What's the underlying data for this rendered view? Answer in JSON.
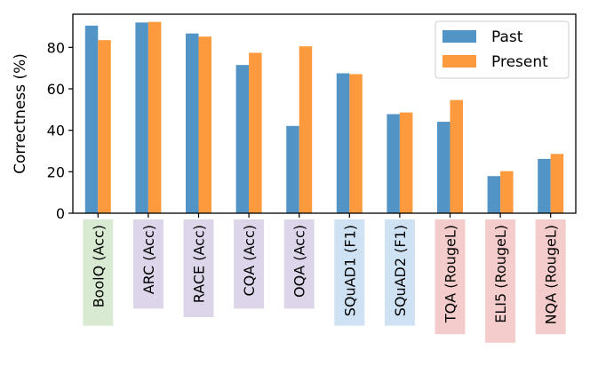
{
  "chart_data": {
    "type": "bar",
    "title": "",
    "xlabel": "",
    "ylabel": "Correctness (%)",
    "ylim": [
      0,
      96
    ],
    "yticks": [
      0,
      20,
      40,
      60,
      80
    ],
    "grid": false,
    "legend_position": "top-right",
    "categories": [
      "BoolQ (Acc)",
      "ARC (Acc)",
      "RACE (Acc)",
      "CQA (Acc)",
      "OQA (Acc)",
      "SQuAD1 (F1)",
      "SQuAD2 (F1)",
      "TQA (RougeL)",
      "ELI5 (RougeL)",
      "NQA (RougeL)"
    ],
    "category_highlight_colors": [
      "#d9ead3",
      "#ddd5ea",
      "#ddd5ea",
      "#ddd5ea",
      "#ddd5ea",
      "#cfe2f3",
      "#cfe2f3",
      "#f4cccc",
      "#f4cccc",
      "#f4cccc"
    ],
    "series": [
      {
        "name": "Past",
        "color": "#5294c5",
        "values": [
          90.5,
          92,
          86.7,
          71.5,
          42.1,
          67.5,
          47.8,
          44.1,
          17.9,
          26.2
        ]
      },
      {
        "name": "Present",
        "color": "#fd9a3d",
        "values": [
          83.5,
          92.3,
          85.2,
          77.4,
          80.5,
          67.1,
          48.6,
          54.6,
          20.3,
          28.6
        ]
      }
    ]
  }
}
